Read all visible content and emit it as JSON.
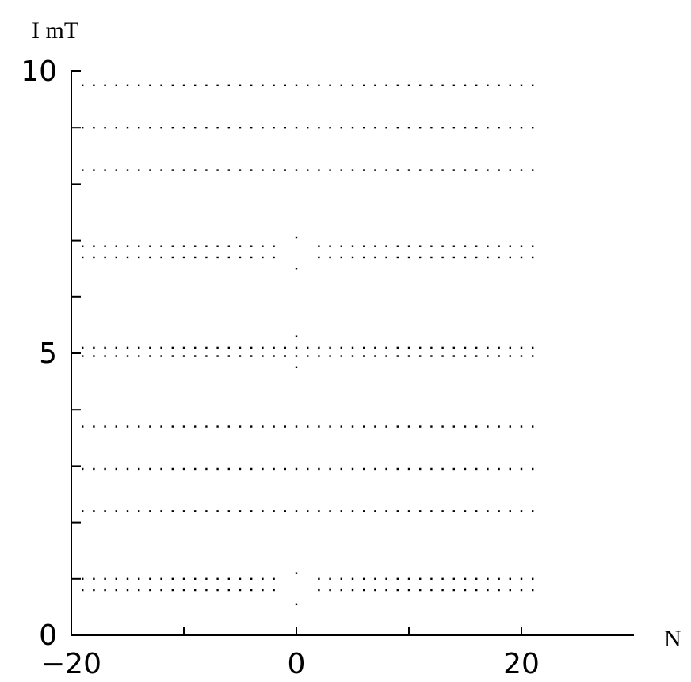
{
  "chart_data": {
    "type": "scatter",
    "title": "",
    "ylabel": "I mT",
    "xlabel": "N",
    "xlim": [
      -20,
      30
    ],
    "ylim": [
      0,
      10
    ],
    "x_tick_labels": [
      "−20",
      "0",
      "20"
    ],
    "y_tick_labels": [
      "0",
      "5",
      "10"
    ],
    "x_ticks_minor": [
      -20,
      -10,
      0,
      10,
      20
    ],
    "y_ticks_minor": [
      0,
      1,
      2,
      3,
      4,
      5,
      6,
      7,
      8,
      9,
      10
    ],
    "point_spacing": 1,
    "rows": [
      {
        "y": 9.75,
        "x_from": -19,
        "x_to": 21
      },
      {
        "y": 9.0,
        "x_from": -19,
        "x_to": 21
      },
      {
        "y": 8.25,
        "x_from": -19,
        "x_to": 21
      },
      {
        "y": 6.9,
        "x_from": -19,
        "x_to": 21,
        "gap": [
          -1,
          1
        ]
      },
      {
        "y": 6.7,
        "x_from": -19,
        "x_to": 21,
        "gap": [
          -1,
          1
        ]
      },
      {
        "y": 5.1,
        "x_from": -19,
        "x_to": 21
      },
      {
        "y": 4.95,
        "x_from": -19,
        "x_to": 21
      },
      {
        "y": 3.7,
        "x_from": -19,
        "x_to": 21
      },
      {
        "y": 2.95,
        "x_from": -19,
        "x_to": 21
      },
      {
        "y": 2.2,
        "x_from": -19,
        "x_to": 21
      },
      {
        "y": 1.0,
        "x_from": -19,
        "x_to": 21,
        "gap": [
          -1,
          1
        ]
      },
      {
        "y": 0.8,
        "x_from": -19,
        "x_to": 21,
        "gap": [
          -1,
          1
        ]
      }
    ],
    "extra_points": [
      {
        "x": 0,
        "y": 7.05
      },
      {
        "x": 0,
        "y": 6.5
      },
      {
        "x": 0,
        "y": 5.3
      },
      {
        "x": 0,
        "y": 4.75
      },
      {
        "x": 0,
        "y": 1.1
      },
      {
        "x": 0,
        "y": 0.55
      }
    ],
    "grid": false,
    "legend": "none"
  }
}
